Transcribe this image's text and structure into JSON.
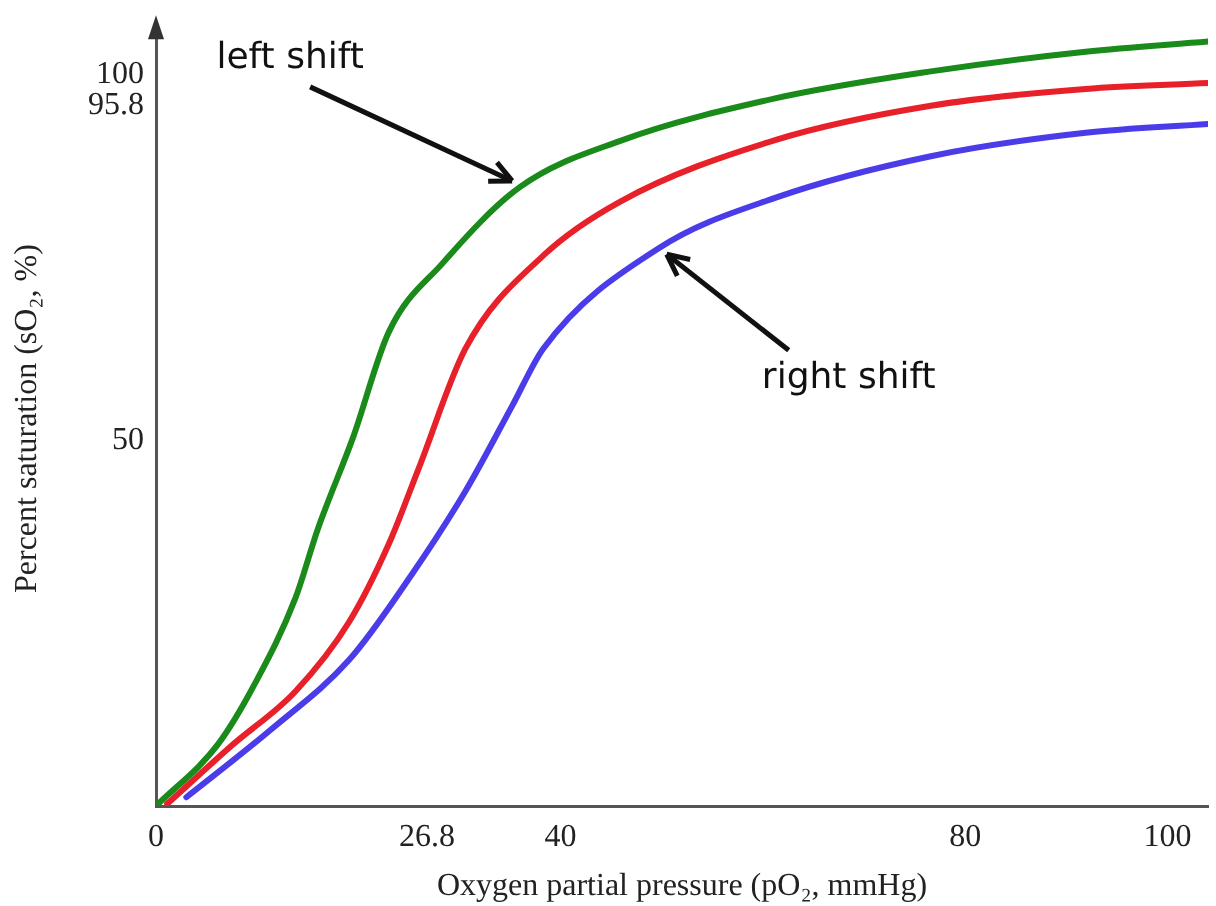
{
  "chart_data": {
    "type": "line",
    "xlabel": "Oxygen partial pressure (pO₂, mmHg)",
    "ylabel": "Percent saturation (sO₂, %)",
    "xlim": [
      0,
      104
    ],
    "xticks": [
      0,
      26.8,
      40,
      80,
      100
    ],
    "ylim": [
      0,
      106
    ],
    "yticks": [
      50,
      95.8,
      100
    ],
    "grid": false,
    "legend": false,
    "marker": "none",
    "line_style": "solid",
    "series": [
      {
        "color": "#1a8a1a",
        "x": [
          0,
          6.1,
          9.8,
          13.8,
          16,
          19.5,
          23,
          28.3,
          36,
          45.9,
          61.2,
          76.6,
          91.9,
          104
        ],
        "values": [
          0,
          8.4,
          16.8,
          28.5,
          37.9,
          50.5,
          64.8,
          74.2,
          84.7,
          91,
          96.8,
          100.5,
          103.2,
          104.6
        ]
      },
      {
        "color": "#e8202a",
        "x": [
          1.1,
          7.6,
          13.8,
          19.1,
          23,
          26,
          30.6,
          38.2,
          45.9,
          61.2,
          76.6,
          91.9,
          104
        ],
        "values": [
          0.3,
          8.4,
          15.7,
          25.2,
          35.8,
          46.3,
          62.6,
          75.2,
          82.7,
          91.1,
          95.8,
          98.1,
          98.9
        ]
      },
      {
        "color": "#4a3ce8",
        "x": [
          3,
          11.4,
          19.1,
          25.2,
          30.6,
          35.2,
          38.3,
          49.7,
          61.2,
          76.6,
          91.9,
          104
        ],
        "values": [
          1.2,
          10.5,
          20,
          31.5,
          43.1,
          54.7,
          62.6,
          76.3,
          83.2,
          88.9,
          92.1,
          93.3
        ]
      }
    ],
    "annotations": [
      {
        "text": "left shift",
        "x": 36,
        "y": 84.7
      },
      {
        "text": "right shift",
        "x": 49.7,
        "y": 76.3
      }
    ]
  }
}
